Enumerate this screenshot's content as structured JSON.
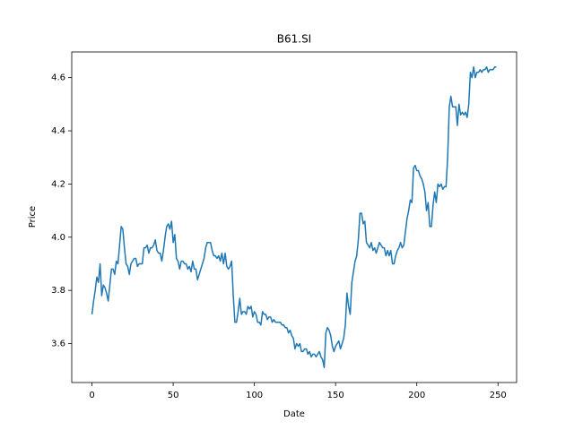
{
  "chart_data": {
    "type": "line",
    "title": "B61.SI",
    "xlabel": "Date",
    "ylabel": "Price",
    "x": [
      0,
      1,
      2,
      3,
      4,
      5,
      6,
      7,
      8,
      9,
      10,
      11,
      12,
      13,
      14,
      15,
      16,
      17,
      18,
      19,
      20,
      21,
      22,
      23,
      24,
      25,
      26,
      27,
      28,
      29,
      30,
      31,
      32,
      33,
      34,
      35,
      36,
      37,
      38,
      39,
      40,
      41,
      42,
      43,
      44,
      45,
      46,
      47,
      48,
      49,
      50,
      51,
      52,
      53,
      54,
      55,
      56,
      57,
      58,
      59,
      60,
      61,
      62,
      63,
      64,
      65,
      66,
      67,
      68,
      69,
      70,
      71,
      72,
      73,
      74,
      75,
      76,
      77,
      78,
      79,
      80,
      81,
      82,
      83,
      84,
      85,
      86,
      87,
      88,
      89,
      90,
      91,
      92,
      93,
      94,
      95,
      96,
      97,
      98,
      99,
      100,
      101,
      102,
      103,
      104,
      105,
      106,
      107,
      108,
      109,
      110,
      111,
      112,
      113,
      114,
      115,
      116,
      117,
      118,
      119,
      120,
      121,
      122,
      123,
      124,
      125,
      126,
      127,
      128,
      129,
      130,
      131,
      132,
      133,
      134,
      135,
      136,
      137,
      138,
      139,
      140,
      141,
      142,
      143,
      144,
      145,
      146,
      147,
      148,
      149,
      150,
      151,
      152,
      153,
      154,
      155,
      156,
      157,
      158,
      159,
      160,
      161,
      162,
      163,
      164,
      165,
      166,
      167,
      168,
      169,
      170,
      171,
      172,
      173,
      174,
      175,
      176,
      177,
      178,
      179,
      180,
      181,
      182,
      183,
      184,
      185,
      186,
      187,
      188,
      189,
      190,
      191,
      192,
      193,
      194,
      195,
      196,
      197,
      198,
      199,
      200,
      201,
      202,
      203,
      204,
      205,
      206,
      207,
      208,
      209,
      210,
      211,
      212,
      213,
      214,
      215,
      216,
      217,
      218,
      219,
      220,
      221,
      222,
      223,
      224,
      225,
      226,
      227,
      228,
      229,
      230,
      231,
      232,
      233,
      234,
      235,
      236,
      237,
      238,
      239,
      240,
      241,
      242,
      243,
      244,
      245,
      246,
      247,
      248,
      249
    ],
    "series": [
      {
        "color": "#1f77b4",
        "values": [
          3.71,
          3.76,
          3.8,
          3.85,
          3.83,
          3.9,
          3.78,
          3.82,
          3.81,
          3.79,
          3.76,
          3.82,
          3.88,
          3.88,
          3.86,
          3.91,
          3.9,
          3.97,
          4.04,
          4.03,
          3.96,
          3.9,
          3.89,
          3.86,
          3.9,
          3.91,
          3.92,
          3.92,
          3.89,
          3.9,
          3.9,
          3.9,
          3.96,
          3.96,
          3.97,
          3.94,
          3.96,
          3.96,
          3.97,
          3.99,
          3.95,
          3.94,
          3.94,
          3.91,
          3.95,
          4.0,
          4.04,
          4.05,
          4.03,
          4.06,
          3.98,
          4.01,
          3.92,
          3.91,
          3.88,
          3.91,
          3.91,
          3.9,
          3.9,
          3.88,
          3.89,
          3.87,
          3.91,
          3.88,
          3.88,
          3.84,
          3.86,
          3.88,
          3.9,
          3.92,
          3.96,
          3.98,
          3.98,
          3.98,
          3.95,
          3.93,
          3.93,
          3.92,
          3.93,
          3.91,
          3.94,
          3.9,
          3.94,
          3.89,
          3.88,
          3.89,
          3.91,
          3.78,
          3.68,
          3.68,
          3.72,
          3.77,
          3.71,
          3.72,
          3.72,
          3.71,
          3.74,
          3.73,
          3.74,
          3.7,
          3.72,
          3.71,
          3.68,
          3.68,
          3.67,
          3.72,
          3.71,
          3.71,
          3.69,
          3.7,
          3.7,
          3.68,
          3.69,
          3.68,
          3.68,
          3.68,
          3.68,
          3.67,
          3.67,
          3.66,
          3.66,
          3.64,
          3.65,
          3.63,
          3.62,
          3.58,
          3.6,
          3.59,
          3.6,
          3.57,
          3.57,
          3.58,
          3.58,
          3.56,
          3.57,
          3.55,
          3.56,
          3.56,
          3.55,
          3.56,
          3.57,
          3.55,
          3.54,
          3.51,
          3.64,
          3.66,
          3.65,
          3.63,
          3.59,
          3.57,
          3.59,
          3.6,
          3.61,
          3.58,
          3.6,
          3.62,
          3.67,
          3.79,
          3.74,
          3.71,
          3.83,
          3.87,
          3.91,
          3.93,
          3.99,
          4.09,
          4.09,
          4.05,
          4.06,
          3.98,
          3.97,
          3.96,
          3.98,
          3.95,
          3.96,
          3.94,
          3.96,
          3.98,
          3.97,
          3.96,
          3.96,
          3.93,
          3.95,
          3.93,
          3.95,
          3.9,
          3.9,
          3.93,
          3.95,
          3.96,
          3.98,
          3.96,
          3.97,
          4.02,
          4.07,
          4.1,
          4.14,
          4.13,
          4.26,
          4.27,
          4.25,
          4.25,
          4.23,
          4.22,
          4.2,
          4.17,
          4.1,
          4.13,
          4.04,
          4.04,
          4.12,
          4.17,
          4.13,
          4.2,
          4.19,
          4.2,
          4.18,
          4.19,
          4.19,
          4.3,
          4.49,
          4.53,
          4.49,
          4.49,
          4.49,
          4.42,
          4.5,
          4.46,
          4.47,
          4.46,
          4.47,
          4.45,
          4.5,
          4.62,
          4.6,
          4.64,
          4.6,
          4.62,
          4.62,
          4.63,
          4.62,
          4.63,
          4.63,
          4.64,
          4.62,
          4.63,
          4.63,
          4.63,
          4.64,
          4.64
        ]
      }
    ],
    "xlim": [
      -12.45,
      261.45
    ],
    "xticks": [
      0,
      50,
      100,
      150,
      200,
      250
    ],
    "ylim": [
      3.4535,
      4.6965
    ],
    "yticks": [
      3.6,
      3.8,
      {
        "value": 4,
        "label": "4.0"
      },
      4.2,
      4.4,
      4.6
    ],
    "grid": false
  }
}
